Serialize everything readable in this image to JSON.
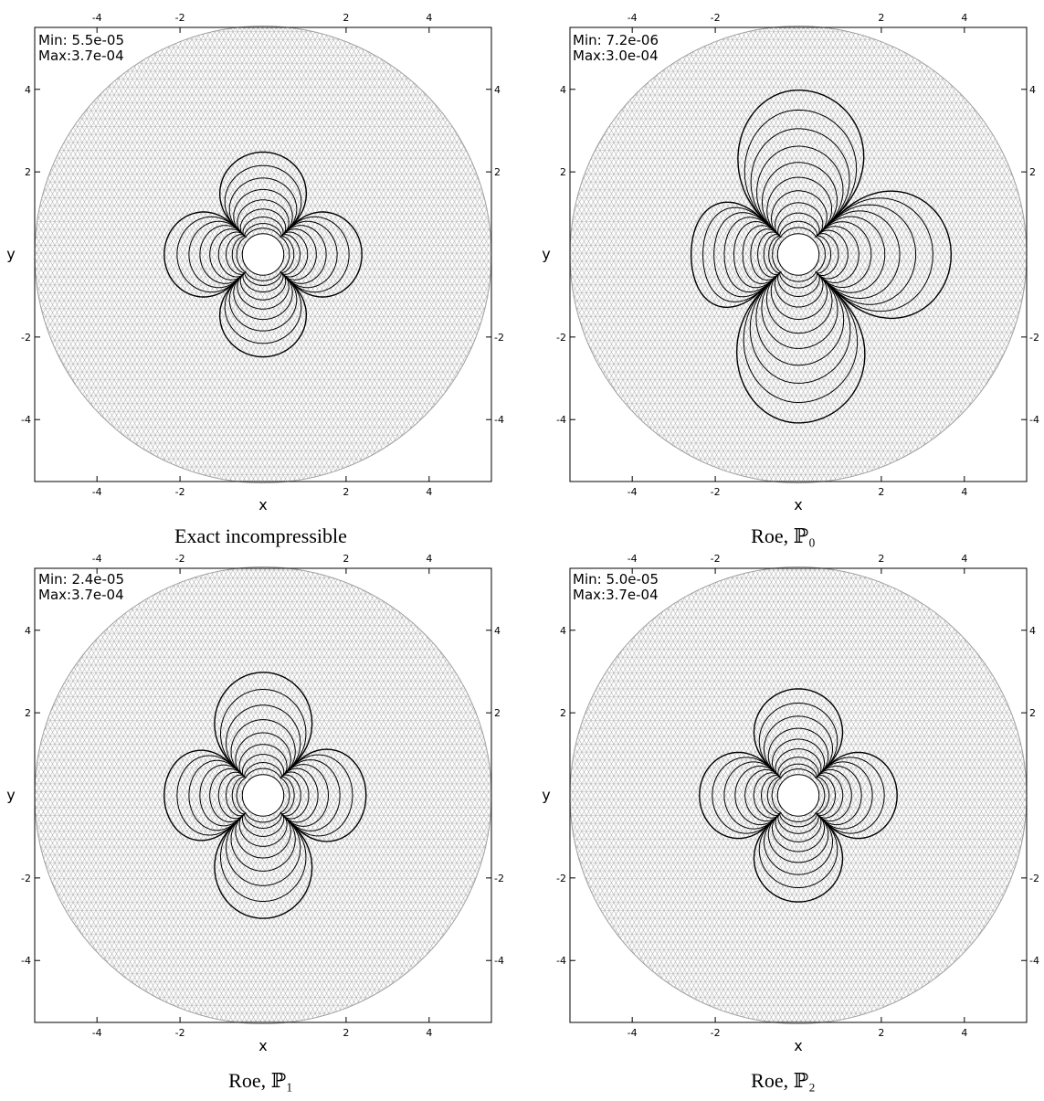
{
  "chart_data": [
    {
      "type": "contour",
      "title": "Exact incompressible",
      "xlabel": "x",
      "ylabel": "y",
      "xlim": [
        -5.5,
        5.5
      ],
      "ylim": [
        -5.5,
        5.5
      ],
      "xticks": [
        -4,
        -2,
        2,
        4
      ],
      "yticks": [
        -4,
        -2,
        2,
        4
      ],
      "domain_radius": 5.5,
      "obstacle_radius": 0.5,
      "min_label": "Min: 5.5e-05",
      "max_label": "Max:3.7e-04",
      "min": 5.5e-05,
      "max": 0.00037,
      "lobes": {
        "up": 2.4,
        "down": 2.4,
        "left": 2.3,
        "right": 2.3
      },
      "contour_levels": 9
    },
    {
      "type": "contour",
      "title": "Roe, ℙ₀",
      "xlabel": "x",
      "ylabel": "y",
      "xlim": [
        -5.5,
        5.5
      ],
      "ylim": [
        -5.5,
        5.5
      ],
      "xticks": [
        -4,
        -2,
        2,
        4
      ],
      "yticks": [
        -4,
        -2,
        2,
        4
      ],
      "domain_radius": 5.5,
      "obstacle_radius": 0.5,
      "min_label": "Min: 7.2e-06",
      "max_label": "Max:3.0e-04",
      "min": 7.2e-06,
      "max": 0.0003,
      "lobes": {
        "up": 3.9,
        "down": 4.0,
        "left": 2.5,
        "right": 3.6
      },
      "contour_levels": 11
    },
    {
      "type": "contour",
      "title": "Roe, ℙ₁",
      "xlabel": "x",
      "ylabel": "y",
      "xlim": [
        -5.5,
        5.5
      ],
      "ylim": [
        -5.5,
        5.5
      ],
      "xticks": [
        -4,
        -2,
        2,
        4
      ],
      "yticks": [
        -4,
        -2,
        2,
        4
      ],
      "domain_radius": 5.5,
      "obstacle_radius": 0.5,
      "min_label": "Min: 2.4e-05",
      "max_label": "Max:3.7e-04",
      "min": 2.4e-05,
      "max": 0.00037,
      "lobes": {
        "up": 2.9,
        "down": 2.9,
        "left": 2.3,
        "right": 2.4
      },
      "contour_levels": 9
    },
    {
      "type": "contour",
      "title": "Roe, ℙ₂",
      "xlabel": "x",
      "ylabel": "y",
      "xlim": [
        -5.5,
        5.5
      ],
      "ylim": [
        -5.5,
        5.5
      ],
      "xticks": [
        -4,
        -2,
        2,
        4
      ],
      "yticks": [
        -4,
        -2,
        2,
        4
      ],
      "domain_radius": 5.5,
      "obstacle_radius": 0.5,
      "min_label": "Min: 5.0e-05",
      "max_label": "Max:3.7e-04",
      "min": 5e-05,
      "max": 0.00037,
      "lobes": {
        "up": 2.5,
        "down": 2.5,
        "left": 2.3,
        "right": 2.3
      },
      "contour_levels": 9
    }
  ]
}
